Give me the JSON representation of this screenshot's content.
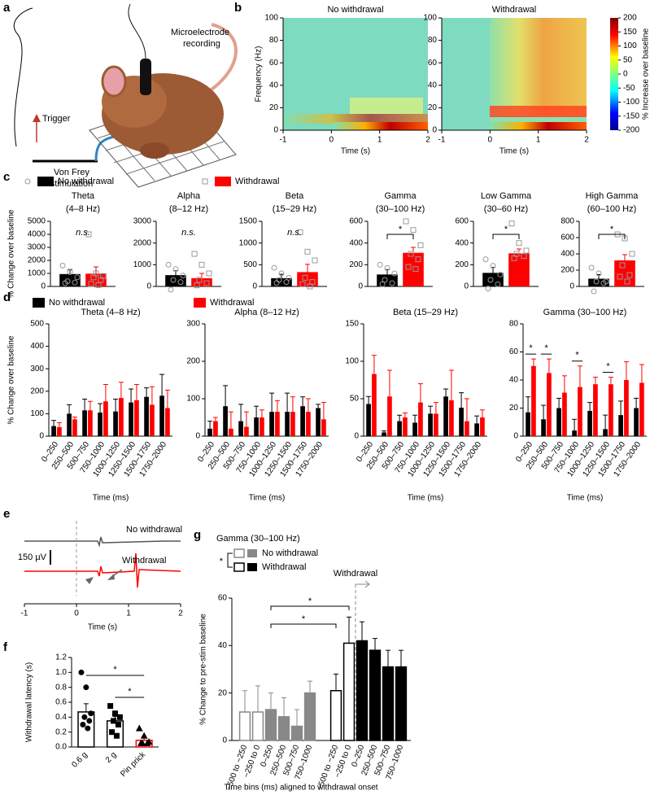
{
  "panel_labels": [
    "a",
    "b",
    "c",
    "d",
    "e",
    "f",
    "g"
  ],
  "illustration": {
    "labels": [
      "Microelectrode",
      "recording",
      "Trigger",
      "Von Frey",
      "stimulation"
    ]
  },
  "legends": {
    "c": [
      {
        "name": "No withdrawal",
        "color": "#000000",
        "marker": "circle"
      },
      {
        "name": "Withdrawal",
        "color": "#ff0000",
        "marker": "square"
      }
    ],
    "d": [
      {
        "name": "No withdrawal",
        "color": "#000000"
      },
      {
        "name": "Withdrawal",
        "color": "#ff0000"
      }
    ]
  },
  "chart_data": [
    {
      "type": "heatmap",
      "title": "No withdrawal",
      "xlabel": "Time (s)",
      "ylabel": "Frequency (Hz)",
      "xlim": [
        -1,
        2
      ],
      "xticks": [
        -1,
        0,
        1,
        2
      ],
      "ylim": [
        0,
        100
      ],
      "yticks": [
        0,
        20,
        40,
        60,
        80,
        100
      ]
    },
    {
      "type": "heatmap",
      "title": "Withdrawal",
      "xlabel": "Time (s)",
      "xlim": [
        -1,
        2
      ],
      "xticks": [
        -1,
        0,
        1,
        2
      ],
      "ylim": [
        0,
        100
      ],
      "yticks": [
        0,
        20,
        40,
        60,
        80,
        100
      ],
      "colorbar": {
        "lim": [
          -200,
          200
        ],
        "ticks": [
          -200,
          -150,
          -100,
          -50,
          0,
          50,
          100,
          150,
          200
        ],
        "label": "% Increase over baseline"
      }
    },
    {
      "type": "bar",
      "title": [
        "Theta",
        "(4–8 Hz)"
      ],
      "ylabel": "% Change over baseline",
      "ylim": [
        0,
        5000
      ],
      "yticks": [
        0,
        1000,
        2000,
        3000,
        4000,
        5000
      ],
      "annotation": "n.s.",
      "series": [
        {
          "color": "#000000",
          "marker": "circle",
          "values": [
            950
          ],
          "errors": [
            350
          ],
          "points": [
            1600,
            1100,
            700,
            400,
            300,
            250
          ]
        },
        {
          "color": "#ff0000",
          "marker": "square",
          "values": [
            980
          ],
          "errors": [
            520
          ],
          "points": [
            4000,
            1000,
            800,
            700,
            500,
            200,
            100
          ]
        }
      ]
    },
    {
      "type": "bar",
      "title": [
        "Alpha",
        "(8–12 Hz)"
      ],
      "ylim": [
        0,
        3000
      ],
      "yticks": [
        0,
        1000,
        2000,
        3000
      ],
      "annotation": "n.s.",
      "series": [
        {
          "color": "#000000",
          "marker": "circle",
          "values": [
            520
          ],
          "errors": [
            200
          ],
          "points": [
            1000,
            800,
            500,
            300,
            200,
            -150
          ]
        },
        {
          "color": "#ff0000",
          "marker": "square",
          "values": [
            380
          ],
          "errors": [
            220
          ],
          "points": [
            1500,
            1000,
            600,
            300,
            150,
            50
          ]
        }
      ]
    },
    {
      "type": "bar",
      "title": [
        "Beta",
        "(15–29 Hz)"
      ],
      "ylim": [
        0,
        1500
      ],
      "yticks": [
        0,
        500,
        1000,
        1500
      ],
      "annotation": "n.s.",
      "series": [
        {
          "color": "#000000",
          "marker": "circle",
          "values": [
            190
          ],
          "errors": [
            90
          ],
          "points": [
            430,
            300,
            200,
            150,
            100,
            80
          ]
        },
        {
          "color": "#ff0000",
          "marker": "square",
          "values": [
            330
          ],
          "errors": [
            180
          ],
          "points": [
            1250,
            800,
            600,
            200,
            100,
            50,
            0
          ]
        }
      ]
    },
    {
      "type": "bar",
      "title": [
        "Gamma",
        "(30–100 Hz)"
      ],
      "ylim": [
        0,
        600
      ],
      "yticks": [
        0,
        200,
        400,
        600
      ],
      "annotation": "*",
      "series": [
        {
          "color": "#000000",
          "marker": "circle",
          "values": [
            110
          ],
          "errors": [
            45
          ],
          "points": [
            200,
            170,
            120,
            60,
            30,
            20
          ]
        },
        {
          "color": "#ff0000",
          "marker": "square",
          "values": [
            310
          ],
          "errors": [
            50
          ],
          "points": [
            600,
            520,
            380,
            300,
            250,
            180,
            160
          ]
        }
      ]
    },
    {
      "type": "bar",
      "title": [
        "Low Gamma",
        "(30–60 Hz)"
      ],
      "ylim": [
        0,
        600
      ],
      "yticks": [
        0,
        200,
        400,
        600
      ],
      "annotation": "*",
      "series": [
        {
          "color": "#000000",
          "marker": "circle",
          "values": [
            125
          ],
          "errors": [
            50
          ],
          "points": [
            250,
            190,
            110,
            60,
            20,
            -20
          ]
        },
        {
          "color": "#ff0000",
          "marker": "square",
          "values": [
            305
          ],
          "errors": [
            40
          ],
          "points": [
            580,
            400,
            330,
            300,
            280,
            260
          ]
        }
      ]
    },
    {
      "type": "bar",
      "title": [
        "High Gamma",
        "(60–100 Hz)"
      ],
      "ylim": [
        0,
        800
      ],
      "yticks": [
        0,
        200,
        400,
        600,
        800
      ],
      "annotation": "*",
      "series": [
        {
          "color": "#000000",
          "marker": "circle",
          "values": [
            95
          ],
          "errors": [
            50
          ],
          "points": [
            230,
            160,
            60,
            60,
            40,
            -60
          ]
        },
        {
          "color": "#ff0000",
          "marker": "square",
          "values": [
            320
          ],
          "errors": [
            70
          ],
          "points": [
            640,
            590,
            400,
            260,
            140,
            120,
            60
          ]
        }
      ]
    },
    {
      "type": "bar",
      "title": "Theta (4–8 Hz)",
      "ylabel": "% Change over baseline",
      "xlabel": "Time (ms)",
      "ylim": [
        0,
        500
      ],
      "yticks": [
        0,
        100,
        200,
        300,
        400,
        500
      ],
      "categories": [
        "0–250",
        "250–500",
        "500–750",
        "750–1000",
        "1000–1250",
        "1250–1500",
        "1500–1750",
        "1750–2000"
      ],
      "series": [
        {
          "color": "#000000",
          "values": [
            45,
            100,
            115,
            105,
            110,
            150,
            175,
            180
          ],
          "errors": [
            25,
            40,
            50,
            40,
            55,
            60,
            40,
            95
          ]
        },
        {
          "color": "#ff0000",
          "values": [
            40,
            75,
            115,
            155,
            170,
            160,
            140,
            125
          ],
          "errors": [
            20,
            10,
            40,
            75,
            70,
            70,
            80,
            80
          ]
        }
      ]
    },
    {
      "type": "bar",
      "title": "Alpha (8–12 Hz)",
      "xlabel": "Time (ms)",
      "ylim": [
        0,
        300
      ],
      "yticks": [
        0,
        100,
        200,
        300
      ],
      "categories": [
        "0–250",
        "250–500",
        "500–750",
        "750–1000",
        "1000–1250",
        "1250–1500",
        "1500–1750",
        "1750–2000"
      ],
      "series": [
        {
          "color": "#000000",
          "values": [
            20,
            80,
            40,
            50,
            65,
            65,
            80,
            75
          ],
          "errors": [
            20,
            55,
            45,
            30,
            50,
            50,
            25,
            10
          ]
        },
        {
          "color": "#ff0000",
          "values": [
            40,
            20,
            25,
            50,
            65,
            65,
            65,
            45
          ],
          "errors": [
            10,
            45,
            40,
            20,
            30,
            40,
            35,
            45
          ]
        }
      ]
    },
    {
      "type": "bar",
      "title": "Beta (15–29 Hz)",
      "xlabel": "Time (ms)",
      "ylim": [
        0,
        150
      ],
      "yticks": [
        0,
        50,
        100,
        150
      ],
      "categories": [
        "0–250",
        "250–500",
        "500–750",
        "750–1000",
        "1000–1250",
        "1250–1500",
        "1500–1750",
        "1750–2000"
      ],
      "series": [
        {
          "color": "#000000",
          "values": [
            43,
            5,
            20,
            18,
            30,
            53,
            38,
            17
          ],
          "errors": [
            10,
            2,
            8,
            10,
            10,
            10,
            20,
            10
          ]
        },
        {
          "color": "#ff0000",
          "values": [
            83,
            53,
            25,
            45,
            30,
            48,
            20,
            25
          ],
          "errors": [
            25,
            35,
            6,
            25,
            15,
            40,
            30,
            10
          ]
        }
      ]
    },
    {
      "type": "bar",
      "title": "Gamma (30–100 Hz)",
      "xlabel": "Time (ms)",
      "ylim": [
        0,
        80
      ],
      "yticks": [
        0,
        20,
        40,
        60,
        80
      ],
      "categories": [
        "0–250",
        "250–500",
        "500–750",
        "750–1000",
        "1000–1250",
        "1250–1500",
        "1500–1750",
        "1750–2000"
      ],
      "series": [
        {
          "color": "#000000",
          "values": [
            17,
            12,
            20,
            4,
            18,
            5,
            15,
            20
          ],
          "errors": [
            11,
            10,
            7,
            8,
            6,
            10,
            10,
            7
          ]
        },
        {
          "color": "#ff0000",
          "values": [
            50,
            45,
            31,
            35,
            37,
            37,
            40,
            38
          ],
          "errors": [
            5,
            10,
            12,
            15,
            5,
            5,
            13,
            13
          ]
        }
      ],
      "annotations": [
        {
          "category": "0–250",
          "text": "*"
        },
        {
          "category": "250–500",
          "text": "*"
        },
        {
          "category": "750–1000",
          "text": "*"
        },
        {
          "category": "1250–1500",
          "text": "*"
        }
      ]
    },
    {
      "type": "trace",
      "xlabel": "Time (s)",
      "xlim": [
        -1,
        2
      ],
      "xticks": [
        -1,
        0,
        1,
        2
      ],
      "scale_bar": "150 µV",
      "traces": [
        {
          "name": "No withdrawal",
          "color": "#555555"
        },
        {
          "name": "Withdrawal",
          "color": "#ff0000"
        }
      ]
    },
    {
      "type": "bar",
      "ylabel": "Withdrawal latency (s)",
      "ylim": [
        0,
        1.2
      ],
      "yticks": [
        {
          "value": 0,
          "label": "0.0"
        },
        0.2,
        0.4,
        0.6,
        0.8,
        {
          "value": 1,
          "label": "1.0"
        },
        1.2
      ],
      "categories": [
        "0.6 g",
        "2 g",
        "Pin prick"
      ],
      "values": [
        0.47,
        0.35,
        0.09
      ],
      "errors": [
        0.11,
        0.06,
        0.05
      ],
      "colors": [
        "#000000",
        "#000000",
        "#ff0000"
      ],
      "markers": [
        "circle",
        "square",
        "triangle"
      ],
      "points": [
        [
          1.0,
          0.8,
          0.45,
          0.4,
          0.35,
          0.3,
          0.25
        ],
        [
          0.55,
          0.45,
          0.4,
          0.35,
          0.3,
          0.2,
          0.15
        ],
        [
          0.25,
          0.15,
          0.07,
          0.05,
          0.05,
          0.05
        ]
      ],
      "comparisons": [
        {
          "between": [
            "0.6 g",
            "Pin prick"
          ],
          "text": "*"
        },
        {
          "between": [
            "2 g",
            "Pin prick"
          ],
          "text": "*"
        }
      ]
    },
    {
      "type": "bar",
      "title": "Gamma (30–100 Hz)",
      "ylabel": "% Change to pre-stim baseline",
      "xlabel": "Time bins (ms) aligned to withdrawal onset",
      "ylim": [
        0,
        60
      ],
      "yticks": [
        0,
        20,
        40,
        60
      ],
      "legend_annotation": "*",
      "onset_label": "Withdrawal",
      "series": [
        {
          "name": "No withdrawal",
          "color": "#888888",
          "fills": [
            "#ffffff",
            "#ffffff",
            "#888888",
            "#888888",
            "#888888",
            "#888888"
          ],
          "categories": [
            "−500 to −250",
            "−250 to 0",
            "0–250",
            "250–500",
            "500–750",
            "750–1000"
          ],
          "values": [
            12,
            12,
            13,
            10,
            6,
            20
          ],
          "errors": [
            9,
            11,
            7,
            8,
            7,
            5
          ]
        },
        {
          "name": "Withdrawal",
          "color": "#000000",
          "fills": [
            "#ffffff",
            "#ffffff",
            "#000000",
            "#000000",
            "#000000",
            "#000000"
          ],
          "categories": [
            "−500 to −250",
            "−250 to 0",
            "0–250",
            "250–500",
            "500–750",
            "750–1000"
          ],
          "values": [
            21,
            41,
            42,
            38,
            31,
            31
          ],
          "errors": [
            7,
            11,
            8,
            5,
            7,
            7
          ]
        }
      ],
      "comparisons": [
        {
          "from": [
            "No withdrawal",
            "0–250"
          ],
          "to": [
            "Withdrawal",
            "−250 to 0"
          ],
          "text": "*"
        },
        {
          "from": [
            "No withdrawal",
            "0–250"
          ],
          "to": [
            "Withdrawal",
            "−500 to −250"
          ],
          "text": "*"
        }
      ]
    }
  ]
}
